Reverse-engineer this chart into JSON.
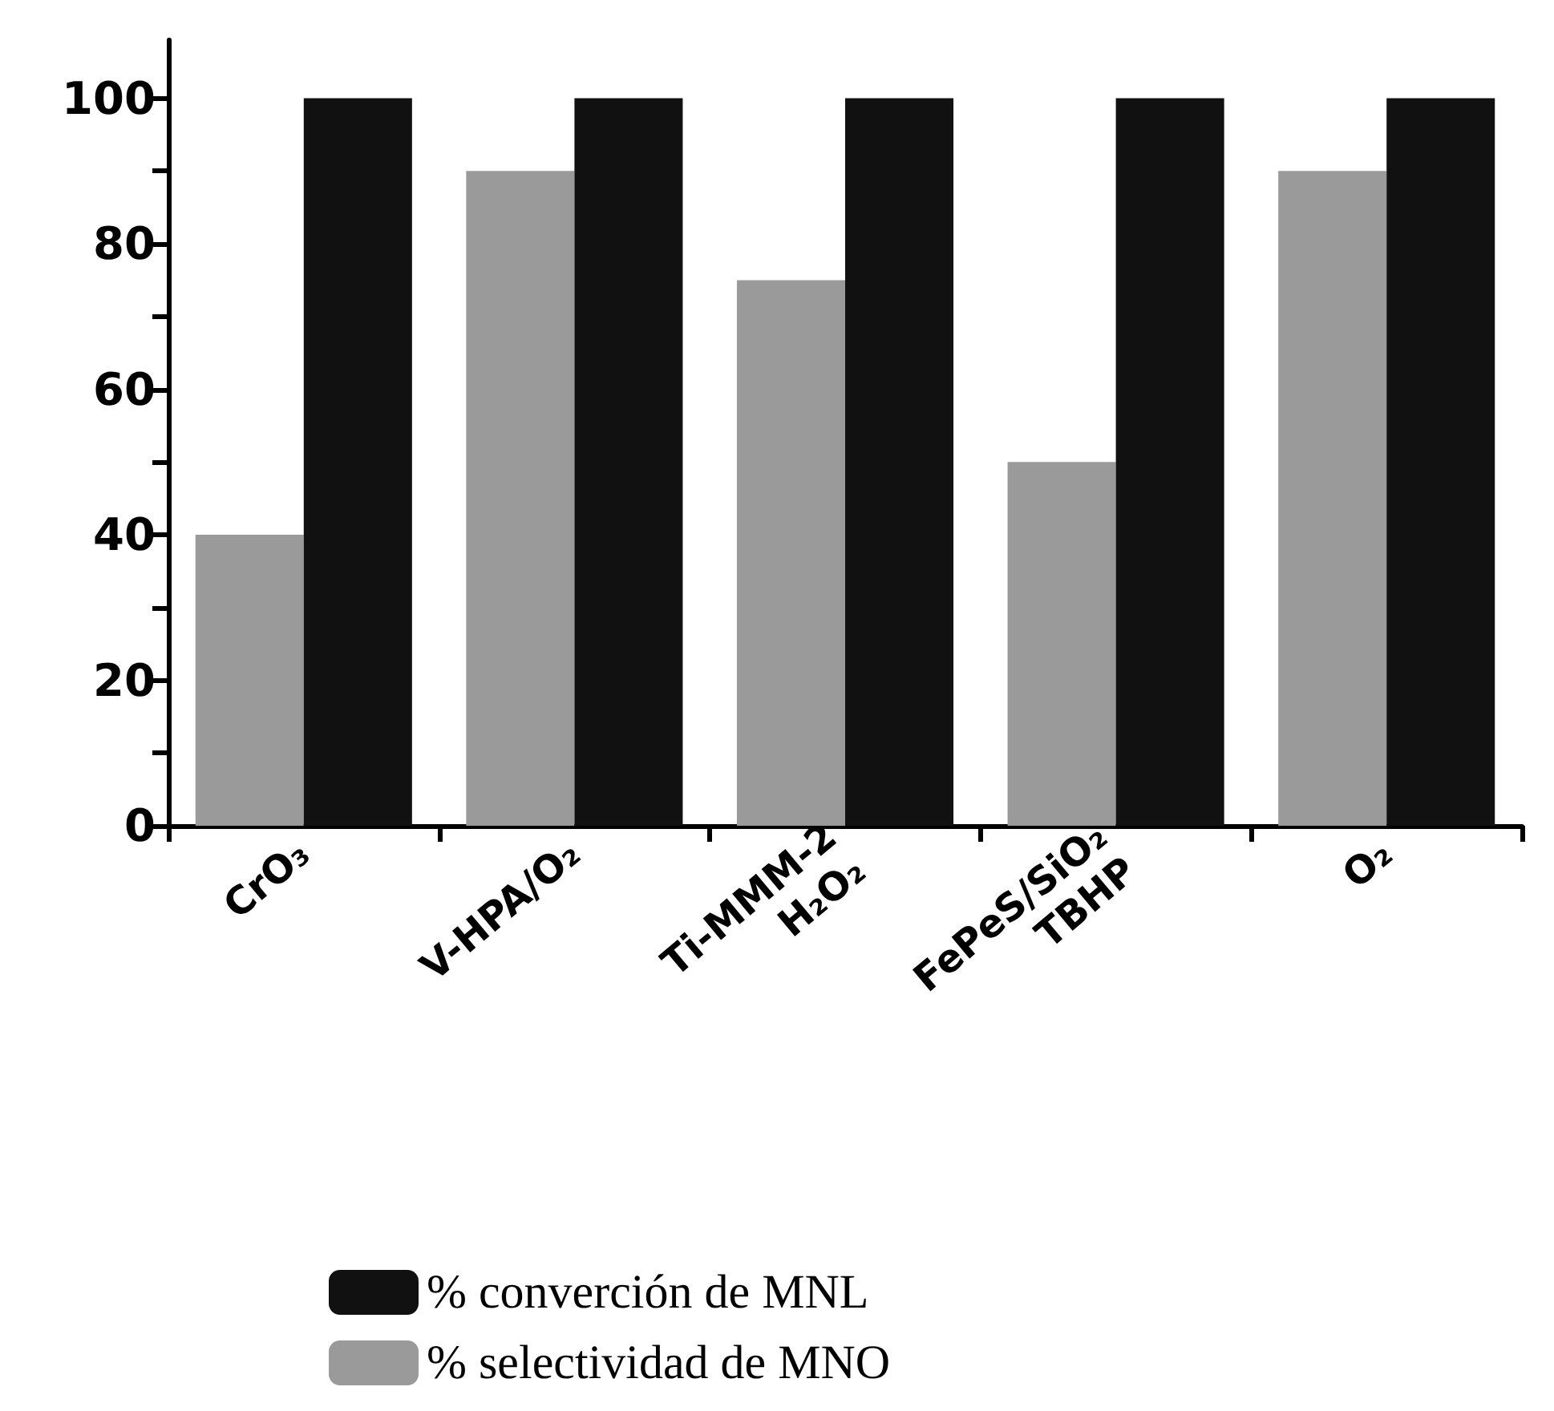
{
  "chart_data": {
    "type": "bar",
    "categories": [
      "CrO₃",
      "V-HPA/O₂",
      "Ti-MMM-2\nH₂O₂",
      "FePeS/SiO₂\nTBHP",
      "O₂"
    ],
    "series": [
      {
        "name": "% selectividad de MNO",
        "color": "#9a9a9a",
        "values": [
          40,
          90,
          75,
          50,
          90
        ]
      },
      {
        "name": "% converción de MNL",
        "color": "#111111",
        "values": [
          100,
          100,
          100,
          100,
          100
        ]
      }
    ],
    "ylim": [
      0,
      108
    ],
    "yticks": [
      0,
      {
        "value": 10,
        "label": null
      },
      20,
      {
        "value": 30,
        "label": null
      },
      40,
      {
        "value": 50,
        "label": null
      },
      60,
      {
        "value": 70,
        "label": null
      },
      80,
      {
        "value": 90,
        "label": null
      },
      100
    ],
    "grid": false,
    "legend": "bottom"
  }
}
